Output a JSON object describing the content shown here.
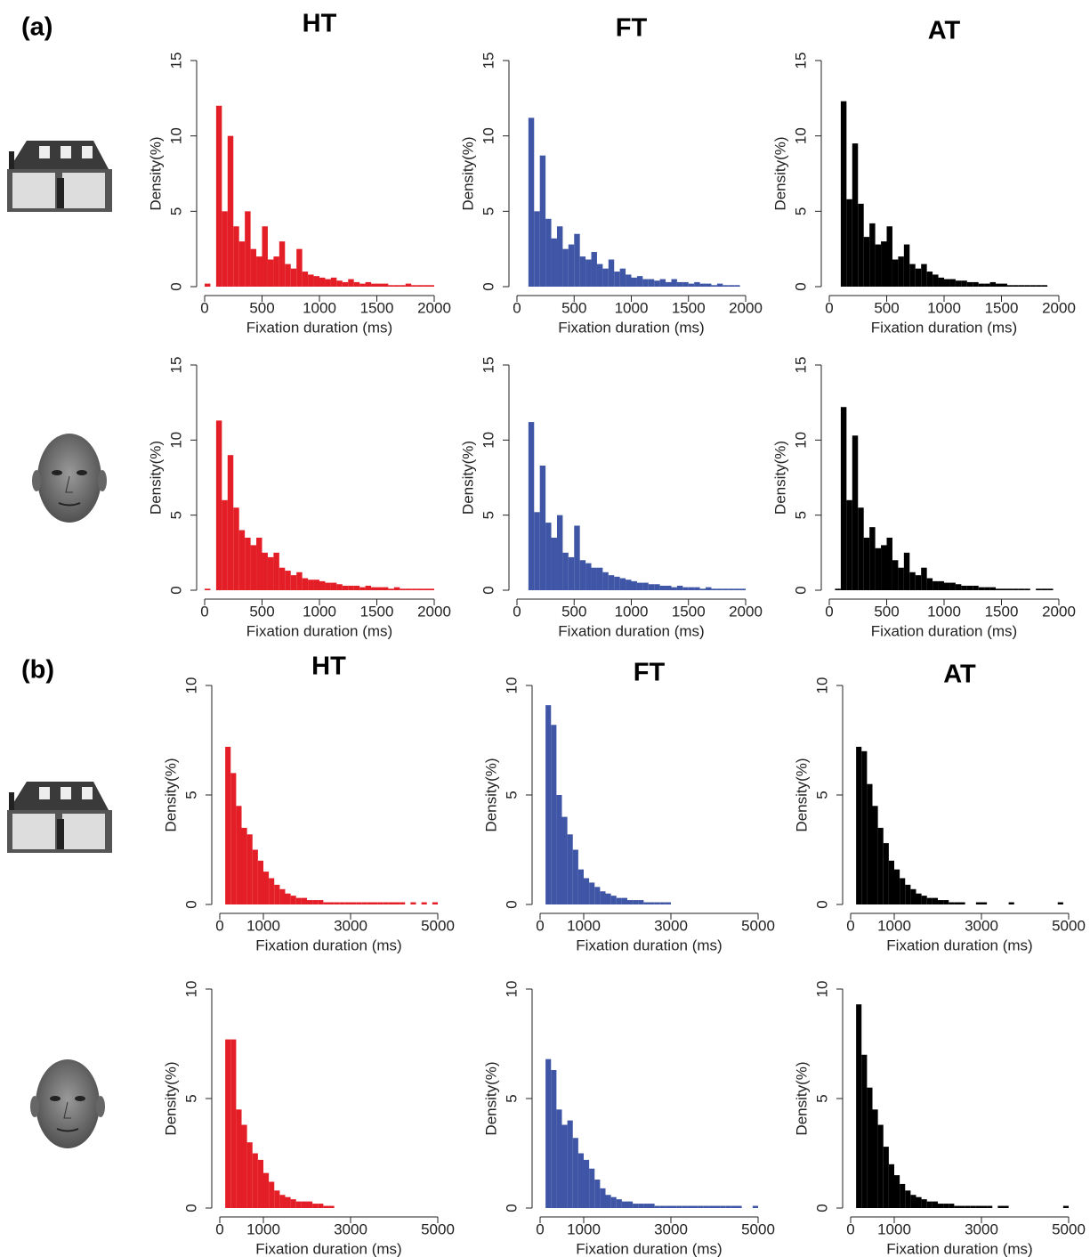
{
  "panel_labels": [
    "(a)",
    "(b)"
  ],
  "chart_data": [
    {
      "type": "histogram",
      "title": "HT",
      "xlabel": "Fixation duration (ms)",
      "ylabel": "Density(%)",
      "color": "#e41e26",
      "bins": [
        0,
        50,
        100,
        150,
        200,
        250,
        300,
        350,
        400,
        450,
        500,
        550,
        600,
        650,
        700,
        750,
        800,
        850,
        900,
        950,
        1000,
        1050,
        1100,
        1150,
        1200,
        1250,
        1300,
        1350,
        1400,
        1450,
        1500,
        1550,
        1600,
        1650,
        1700,
        1750,
        1800,
        1850,
        1900,
        1950,
        2000
      ],
      "values": [
        0.2,
        0,
        12,
        5,
        10,
        4,
        3,
        5,
        2.5,
        2,
        4,
        1.8,
        2,
        3,
        1.5,
        1.2,
        2.5,
        1,
        0.8,
        0.7,
        0.6,
        0.5,
        0.6,
        0.4,
        0.3,
        0.5,
        0.3,
        0.2,
        0.3,
        0.2,
        0.2,
        0.2,
        0.1,
        0.1,
        0.1,
        0.2,
        0.1,
        0.1,
        0.1,
        0.1
      ],
      "xlim": [
        0,
        2000
      ],
      "ylim": [
        0,
        15
      ],
      "xticks": [
        0,
        500,
        1000,
        1500,
        2000
      ],
      "yticks": [
        0,
        5,
        10,
        15
      ]
    },
    {
      "type": "histogram",
      "title": "FT",
      "xlabel": "Fixation duration (ms)",
      "ylabel": "Density(%)",
      "color": "#3f55a5",
      "bins": [
        0,
        50,
        100,
        150,
        200,
        250,
        300,
        350,
        400,
        450,
        500,
        550,
        600,
        650,
        700,
        750,
        800,
        850,
        900,
        950,
        1000,
        1050,
        1100,
        1150,
        1200,
        1250,
        1300,
        1350,
        1400,
        1450,
        1500,
        1550,
        1600,
        1650,
        1700,
        1750,
        1800,
        1850,
        1900,
        1950,
        2000
      ],
      "values": [
        0,
        0,
        11.2,
        5,
        8.7,
        4.5,
        3.2,
        4,
        2.5,
        2.8,
        3.5,
        2,
        1.8,
        2.3,
        1.5,
        1.2,
        1.8,
        1,
        1.2,
        0.8,
        0.6,
        0.7,
        0.5,
        0.5,
        0.4,
        0.5,
        0.3,
        0.5,
        0.3,
        0.3,
        0.2,
        0.3,
        0.2,
        0.2,
        0.1,
        0.2,
        0.1,
        0.1,
        0.1,
        0
      ],
      "xlim": [
        0,
        2000
      ],
      "ylim": [
        0,
        15
      ],
      "xticks": [
        0,
        500,
        1000,
        1500,
        2000
      ],
      "yticks": [
        0,
        5,
        10,
        15
      ]
    },
    {
      "type": "histogram",
      "title": "AT",
      "xlabel": "Fixation duration (ms)",
      "ylabel": "Density(%)",
      "color": "#000000",
      "bins": [
        0,
        50,
        100,
        150,
        200,
        250,
        300,
        350,
        400,
        450,
        500,
        550,
        600,
        650,
        700,
        750,
        800,
        850,
        900,
        950,
        1000,
        1050,
        1100,
        1150,
        1200,
        1250,
        1300,
        1350,
        1400,
        1450,
        1500,
        1550,
        1600,
        1650,
        1700,
        1750,
        1800,
        1850,
        1900,
        1950,
        2000
      ],
      "values": [
        0,
        0,
        12.3,
        5.8,
        9.5,
        5.5,
        3.3,
        4.2,
        2.8,
        3,
        4,
        1.8,
        2,
        2.8,
        1.5,
        1.2,
        1.5,
        1,
        0.8,
        0.6,
        0.5,
        0.5,
        0.4,
        0.4,
        0.3,
        0.3,
        0.2,
        0.2,
        0.3,
        0.2,
        0.2,
        0.1,
        0.1,
        0.1,
        0.1,
        0.1,
        0.1,
        0.1,
        0,
        0
      ],
      "xlim": [
        0,
        2000
      ],
      "ylim": [
        0,
        15
      ],
      "xticks": [
        0,
        500,
        1000,
        1500,
        2000
      ],
      "yticks": [
        0,
        5,
        10,
        15
      ]
    },
    {
      "type": "histogram",
      "xlabel": "Fixation duration (ms)",
      "ylabel": "Density(%)",
      "color": "#e41e26",
      "bins": [
        0,
        50,
        100,
        150,
        200,
        250,
        300,
        350,
        400,
        450,
        500,
        550,
        600,
        650,
        700,
        750,
        800,
        850,
        900,
        950,
        1000,
        1050,
        1100,
        1150,
        1200,
        1250,
        1300,
        1350,
        1400,
        1450,
        1500,
        1550,
        1600,
        1650,
        1700,
        1750,
        1800,
        1850,
        1900,
        1950,
        2000
      ],
      "values": [
        0.1,
        0,
        11.3,
        6,
        9,
        5.5,
        4,
        3.5,
        3,
        3.5,
        2.5,
        2.2,
        2.5,
        1.5,
        1.3,
        1,
        1.2,
        0.8,
        0.7,
        0.7,
        0.6,
        0.5,
        0.5,
        0.4,
        0.3,
        0.3,
        0.3,
        0.2,
        0.3,
        0.2,
        0.2,
        0.2,
        0.1,
        0.2,
        0.1,
        0.1,
        0.1,
        0.1,
        0.1,
        0.1
      ],
      "xlim": [
        0,
        2000
      ],
      "ylim": [
        0,
        15
      ],
      "xticks": [
        0,
        500,
        1000,
        1500,
        2000
      ],
      "yticks": [
        0,
        5,
        10,
        15
      ]
    },
    {
      "type": "histogram",
      "xlabel": "Fixation duration (ms)",
      "ylabel": "Density(%)",
      "color": "#3f55a5",
      "bins": [
        0,
        50,
        100,
        150,
        200,
        250,
        300,
        350,
        400,
        450,
        500,
        550,
        600,
        650,
        700,
        750,
        800,
        850,
        900,
        950,
        1000,
        1050,
        1100,
        1150,
        1200,
        1250,
        1300,
        1350,
        1400,
        1450,
        1500,
        1550,
        1600,
        1650,
        1700,
        1750,
        1800,
        1850,
        1900,
        1950,
        2000
      ],
      "values": [
        0,
        0,
        11.2,
        5.2,
        8.3,
        4.5,
        3.5,
        5,
        2.5,
        2.2,
        4.3,
        2,
        1.8,
        1.5,
        1.5,
        1.2,
        1,
        0.9,
        0.8,
        0.7,
        0.6,
        0.5,
        0.5,
        0.4,
        0.4,
        0.3,
        0.3,
        0.2,
        0.3,
        0.2,
        0.2,
        0.2,
        0.1,
        0.2,
        0.1,
        0.1,
        0.1,
        0.1,
        0.1,
        0.1
      ],
      "xlim": [
        0,
        2000
      ],
      "ylim": [
        0,
        15
      ],
      "xticks": [
        0,
        500,
        1000,
        1500,
        2000
      ],
      "yticks": [
        0,
        5,
        10,
        15
      ]
    },
    {
      "type": "histogram",
      "xlabel": "Fixation duration (ms)",
      "ylabel": "Density(%)",
      "color": "#000000",
      "bins": [
        0,
        50,
        100,
        150,
        200,
        250,
        300,
        350,
        400,
        450,
        500,
        550,
        600,
        650,
        700,
        750,
        800,
        850,
        900,
        950,
        1000,
        1050,
        1100,
        1150,
        1200,
        1250,
        1300,
        1350,
        1400,
        1450,
        1500,
        1550,
        1600,
        1650,
        1700,
        1750,
        1800,
        1850,
        1900,
        1950,
        2000
      ],
      "values": [
        0,
        0.1,
        12.2,
        6,
        10.3,
        5.5,
        3.5,
        4.2,
        2.8,
        3,
        3.5,
        2,
        1.5,
        2.5,
        1.2,
        1,
        1.5,
        0.8,
        0.6,
        0.6,
        0.5,
        0.5,
        0.4,
        0.3,
        0.3,
        0.3,
        0.2,
        0.2,
        0.2,
        0.1,
        0.1,
        0.1,
        0.1,
        0.1,
        0.1,
        0,
        0.1,
        0.1,
        0.1,
        0
      ],
      "xlim": [
        0,
        2000
      ],
      "ylim": [
        0,
        15
      ],
      "xticks": [
        0,
        500,
        1000,
        1500,
        2000
      ],
      "yticks": [
        0,
        5,
        10,
        15
      ]
    },
    {
      "type": "histogram",
      "title": "HT",
      "xlabel": "Fixation duration (ms)",
      "ylabel": "Density(%)",
      "color": "#e41e26",
      "bins": [
        0,
        125,
        250,
        375,
        500,
        625,
        750,
        875,
        1000,
        1125,
        1250,
        1375,
        1500,
        1625,
        1750,
        1875,
        2000,
        2125,
        2250,
        2375,
        2500,
        2625,
        2750,
        2875,
        3000,
        3125,
        3250,
        3375,
        3500,
        3625,
        3750,
        3875,
        4000,
        4125,
        4250,
        4375,
        4500,
        4625,
        4750,
        4875,
        5000
      ],
      "values": [
        0,
        7.2,
        6,
        4.5,
        3.5,
        3.2,
        2.5,
        2,
        1.5,
        1.2,
        0.9,
        0.7,
        0.5,
        0.4,
        0.3,
        0.3,
        0.2,
        0.2,
        0.2,
        0.1,
        0.1,
        0.1,
        0.1,
        0.1,
        0.1,
        0.1,
        0.1,
        0.1,
        0.1,
        0.1,
        0.1,
        0.1,
        0.1,
        0.1,
        0,
        0.1,
        0,
        0.1,
        0,
        0.1
      ],
      "xlim": [
        0,
        5000
      ],
      "ylim": [
        0,
        10
      ],
      "xticks": [
        0,
        1000,
        3000,
        5000
      ],
      "yticks": [
        0,
        5,
        10
      ]
    },
    {
      "type": "histogram",
      "title": "FT",
      "xlabel": "Fixation duration (ms)",
      "ylabel": "Density(%)",
      "color": "#3f55a5",
      "bins": [
        0,
        125,
        250,
        375,
        500,
        625,
        750,
        875,
        1000,
        1125,
        1250,
        1375,
        1500,
        1625,
        1750,
        1875,
        2000,
        2125,
        2250,
        2375,
        2500,
        2625,
        2750,
        2875,
        3000,
        3125,
        3250,
        3375,
        3500,
        3625,
        3750,
        3875,
        4000,
        4125,
        4250,
        4375,
        4500,
        4625,
        4750,
        4875,
        5000
      ],
      "values": [
        0,
        9.1,
        8.2,
        5,
        4,
        3.2,
        2.5,
        1.6,
        1.2,
        1,
        0.8,
        0.6,
        0.5,
        0.4,
        0.3,
        0.3,
        0.2,
        0.2,
        0.2,
        0.1,
        0.1,
        0.1,
        0.1,
        0.1,
        0,
        0,
        0,
        0,
        0,
        0,
        0,
        0,
        0,
        0,
        0,
        0,
        0,
        0,
        0,
        0
      ],
      "xlim": [
        0,
        5000
      ],
      "ylim": [
        0,
        10
      ],
      "xticks": [
        0,
        1000,
        3000,
        5000
      ],
      "yticks": [
        0,
        5,
        10
      ]
    },
    {
      "type": "histogram",
      "title": "AT",
      "xlabel": "Fixation duration (ms)",
      "ylabel": "Density(%)",
      "color": "#000000",
      "bins": [
        0,
        125,
        250,
        375,
        500,
        625,
        750,
        875,
        1000,
        1125,
        1250,
        1375,
        1500,
        1625,
        1750,
        1875,
        2000,
        2125,
        2250,
        2375,
        2500,
        2625,
        2750,
        2875,
        3000,
        3125,
        3250,
        3375,
        3500,
        3625,
        3750,
        3875,
        4000,
        4125,
        4250,
        4375,
        4500,
        4625,
        4750,
        4875,
        5000
      ],
      "values": [
        0,
        7.2,
        7,
        5.5,
        4.5,
        3.5,
        2.8,
        2,
        1.6,
        1.2,
        0.9,
        0.7,
        0.5,
        0.4,
        0.3,
        0.3,
        0.2,
        0.2,
        0.1,
        0.1,
        0.1,
        0,
        0,
        0.1,
        0.1,
        0,
        0,
        0,
        0,
        0.1,
        0,
        0,
        0,
        0,
        0,
        0,
        0,
        0,
        0.1,
        0
      ],
      "xlim": [
        0,
        5000
      ],
      "ylim": [
        0,
        10
      ],
      "xticks": [
        0,
        1000,
        3000,
        5000
      ],
      "yticks": [
        0,
        5,
        10
      ]
    },
    {
      "type": "histogram",
      "xlabel": "Fixation duration (ms)",
      "ylabel": "Density(%)",
      "color": "#e41e26",
      "bins": [
        0,
        125,
        250,
        375,
        500,
        625,
        750,
        875,
        1000,
        1125,
        1250,
        1375,
        1500,
        1625,
        1750,
        1875,
        2000,
        2125,
        2250,
        2375,
        2500,
        2625,
        2750,
        2875,
        3000,
        3125,
        3250,
        3375,
        3500,
        3625,
        3750,
        3875,
        4000,
        4125,
        4250,
        4375,
        4500,
        4625,
        4750,
        4875,
        5000
      ],
      "values": [
        0,
        7.7,
        7.7,
        4.5,
        3.8,
        3,
        2.5,
        2.2,
        1.6,
        1.2,
        0.8,
        0.6,
        0.5,
        0.4,
        0.3,
        0.3,
        0.3,
        0.2,
        0.2,
        0.1,
        0.1,
        0,
        0,
        0,
        0,
        0,
        0,
        0,
        0,
        0,
        0,
        0,
        0,
        0,
        0,
        0,
        0,
        0,
        0,
        0
      ],
      "xlim": [
        0,
        5000
      ],
      "ylim": [
        0,
        10
      ],
      "xticks": [
        0,
        1000,
        3000,
        5000
      ],
      "yticks": [
        0,
        5,
        10
      ]
    },
    {
      "type": "histogram",
      "xlabel": "Fixation duration (ms)",
      "ylabel": "Density(%)",
      "color": "#3f55a5",
      "bins": [
        0,
        125,
        250,
        375,
        500,
        625,
        750,
        875,
        1000,
        1125,
        1250,
        1375,
        1500,
        1625,
        1750,
        1875,
        2000,
        2125,
        2250,
        2375,
        2500,
        2625,
        2750,
        2875,
        3000,
        3125,
        3250,
        3375,
        3500,
        3625,
        3750,
        3875,
        4000,
        4125,
        4250,
        4375,
        4500,
        4625,
        4750,
        4875,
        5000
      ],
      "values": [
        0,
        6.8,
        6.3,
        4.5,
        3.8,
        4,
        3.2,
        2.5,
        2.2,
        1.8,
        1.3,
        0.9,
        0.6,
        0.5,
        0.4,
        0.3,
        0.3,
        0.2,
        0.2,
        0.2,
        0.2,
        0.1,
        0.1,
        0.1,
        0.1,
        0.1,
        0.1,
        0.1,
        0.1,
        0.1,
        0.1,
        0.1,
        0.1,
        0.1,
        0.1,
        0.1,
        0.1,
        0,
        0,
        0.1
      ],
      "xlim": [
        0,
        5000
      ],
      "ylim": [
        0,
        10
      ],
      "xticks": [
        0,
        1000,
        3000,
        5000
      ],
      "yticks": [
        0,
        5,
        10
      ]
    },
    {
      "type": "histogram",
      "xlabel": "Fixation duration (ms)",
      "ylabel": "Density(%)",
      "color": "#000000",
      "bins": [
        0,
        125,
        250,
        375,
        500,
        625,
        750,
        875,
        1000,
        1125,
        1250,
        1375,
        1500,
        1625,
        1750,
        1875,
        2000,
        2125,
        2250,
        2375,
        2500,
        2625,
        2750,
        2875,
        3000,
        3125,
        3250,
        3375,
        3500,
        3625,
        3750,
        3875,
        4000,
        4125,
        4250,
        4375,
        4500,
        4625,
        4750,
        4875,
        5000
      ],
      "values": [
        0,
        9.3,
        7,
        5.5,
        4.5,
        3.8,
        2.8,
        2,
        1.5,
        1.1,
        0.8,
        0.6,
        0.5,
        0.4,
        0.3,
        0.3,
        0.2,
        0.2,
        0.2,
        0.1,
        0.1,
        0.1,
        0.1,
        0.1,
        0.1,
        0.1,
        0,
        0.1,
        0.1,
        0,
        0,
        0,
        0,
        0,
        0,
        0,
        0,
        0,
        0,
        0.1
      ],
      "xlim": [
        0,
        5000
      ],
      "ylim": [
        0,
        10
      ],
      "xticks": [
        0,
        1000,
        3000,
        5000
      ],
      "yticks": [
        0,
        5,
        10
      ]
    }
  ]
}
